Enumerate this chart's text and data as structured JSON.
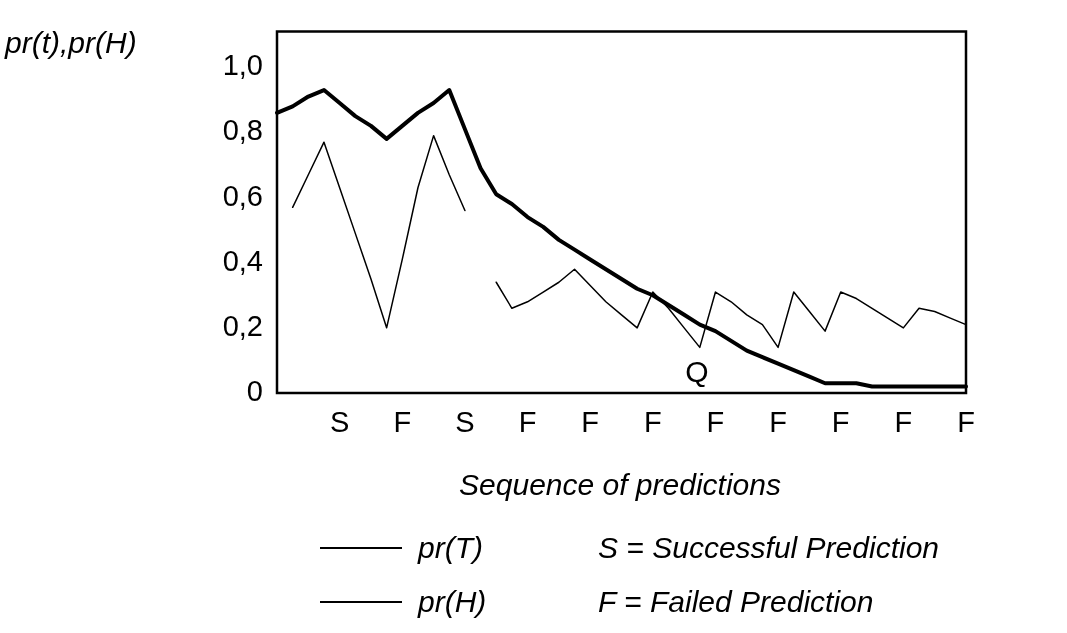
{
  "chart_data": {
    "type": "line",
    "ylabel": "pr(t),pr(H)",
    "xlabel": "Sequence of predictions",
    "categories": [
      null,
      null,
      null,
      null,
      "S",
      null,
      null,
      null,
      "F",
      null,
      null,
      null,
      "S",
      null,
      null,
      null,
      "F",
      null,
      null,
      null,
      "F",
      null,
      null,
      null,
      "F",
      null,
      null,
      null,
      "F",
      null,
      null,
      null,
      "F",
      null,
      null,
      null,
      "F",
      null,
      null,
      null,
      "F",
      null,
      null,
      null,
      "F"
    ],
    "ylim": [
      0,
      1.11
    ],
    "yticks": [
      0,
      {
        "value": 0.2,
        "label": "0,2"
      },
      {
        "value": 0.4,
        "label": "0,4"
      },
      {
        "value": 0.6,
        "label": "0,6"
      },
      {
        "value": 0.8,
        "label": "0,8"
      },
      {
        "value": 1,
        "label": "1,0"
      }
    ],
    "series": [
      {
        "name": "pr(T)",
        "color": "#000000",
        "values": [
          0.86,
          0.88,
          0.91,
          0.93,
          0.89,
          0.85,
          0.82,
          0.78,
          0.82,
          0.86,
          0.89,
          0.93,
          0.81,
          0.69,
          0.61,
          0.58,
          0.54,
          0.51,
          0.47,
          0.44,
          0.41,
          0.38,
          0.35,
          0.32,
          0.3,
          0.27,
          0.24,
          0.21,
          0.19,
          0.16,
          0.13,
          0.11,
          0.09,
          0.07,
          0.05,
          0.03,
          0.03,
          0.03,
          0.02,
          0.02,
          0.02,
          0.02,
          0.02,
          0.02,
          0.02
        ]
      },
      {
        "name": "pr(H)",
        "color": "#000000",
        "values": [
          null,
          0.57,
          0.67,
          0.77,
          0.63,
          0.49,
          0.35,
          0.2,
          0.41,
          0.63,
          0.79,
          0.67,
          0.56,
          null,
          0.34,
          0.26,
          0.28,
          0.31,
          0.34,
          0.38,
          0.33,
          0.28,
          0.24,
          0.2,
          0.31,
          0.26,
          0.2,
          0.14,
          0.31,
          0.28,
          0.24,
          0.21,
          0.14,
          0.31,
          0.25,
          0.19,
          0.31,
          0.29,
          0.26,
          0.23,
          0.2,
          0.26,
          0.25,
          0.23,
          0.21
        ]
      }
    ],
    "legend": "bottom",
    "grid": false,
    "marker": "none",
    "annotations": [
      "Q",
      "S = Successful Prediction",
      "F = Failed Prediction"
    ]
  }
}
